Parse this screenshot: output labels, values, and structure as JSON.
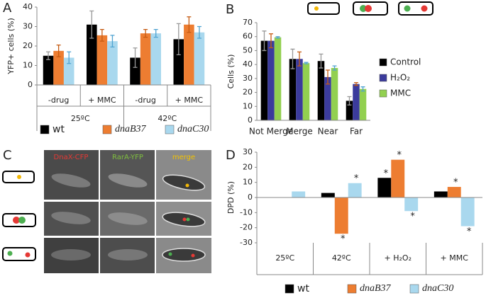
{
  "panels": [
    "A",
    "B",
    "C",
    "D"
  ],
  "panel_c": {
    "labels": [
      "DnaX-CFP",
      "RarA-YFP",
      "merge"
    ]
  },
  "chart_data": [
    {
      "type": "bar",
      "ylabel": "YFP+ cells (%)",
      "categories": [
        "-drug",
        "+ MMC",
        "-drug",
        "+ MMC"
      ],
      "groups": [
        "25ºC",
        "42ºC"
      ],
      "series": [
        {
          "name": "wt",
          "color": "#000000",
          "values": [
            15,
            31,
            14,
            23.5
          ],
          "errors": [
            2,
            7,
            5,
            8
          ]
        },
        {
          "name": "dnaB37",
          "color": "#ed7d31",
          "values": [
            17.5,
            25.5,
            26.5,
            31
          ],
          "errors": [
            3,
            3,
            2,
            4
          ]
        },
        {
          "name": "dnaC30",
          "color": "#a9d8ee",
          "values": [
            14,
            22.5,
            26.5,
            27
          ],
          "errors": [
            3,
            3,
            2,
            3
          ]
        }
      ],
      "ylim": [
        0,
        40
      ],
      "yticks": [
        0,
        10,
        20,
        30,
        40
      ],
      "legend": "bottom"
    },
    {
      "type": "bar",
      "ylabel": "Cells (%)",
      "categories": [
        "Not Merge",
        "Merge",
        "Near",
        "Far"
      ],
      "series": [
        {
          "name": "Control",
          "color": "#000000",
          "values": [
            57,
            44,
            42.5,
            14
          ],
          "errors": [
            7,
            7,
            5,
            3
          ]
        },
        {
          "name": "H₂O₂",
          "color": "#3b3b9c",
          "values": [
            57,
            44,
            31,
            26
          ],
          "errors": [
            5,
            5,
            5,
            1
          ]
        },
        {
          "name": "MMC",
          "color": "#92d050",
          "values": [
            59.5,
            41,
            37.5,
            22.5
          ],
          "errors": [
            0.5,
            0.5,
            1.5,
            1.5
          ]
        }
      ],
      "ylim": [
        0,
        70
      ],
      "yticks": [
        0,
        10,
        20,
        30,
        40,
        50,
        60,
        70
      ],
      "legend": "right"
    },
    {
      "type": "bar",
      "ylabel": "DPD (%)",
      "categories": [
        "25ºC",
        "42ºC",
        "+ H₂O₂",
        "+ MMC"
      ],
      "series": [
        {
          "name": "wt",
          "color": "#000000",
          "values": [
            null,
            3,
            13,
            4
          ],
          "marks": [
            null,
            null,
            "*",
            null
          ]
        },
        {
          "name": "dnaB37",
          "color": "#ed7d31",
          "values": [
            null,
            -24,
            25,
            7
          ],
          "marks": [
            null,
            "*",
            "*",
            "*"
          ]
        },
        {
          "name": "dnaC30",
          "color": "#a9d8ee",
          "values": [
            4,
            9.5,
            -9,
            -19
          ],
          "marks": [
            null,
            "*",
            "*",
            "*"
          ]
        }
      ],
      "ylim": [
        -30,
        30
      ],
      "yticks": [
        -30,
        -20,
        -10,
        0,
        10,
        20,
        30
      ],
      "legend": "bottom"
    }
  ]
}
